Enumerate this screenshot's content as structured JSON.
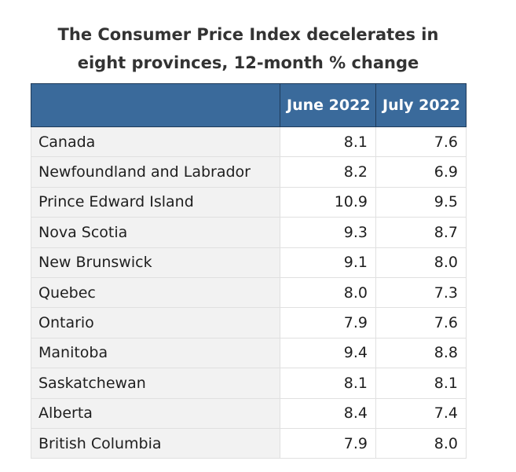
{
  "chart_data": {
    "type": "table",
    "title": "The Consumer Price Index decelerates in eight provinces, 12-month % change",
    "columns": [
      "",
      "June 2022",
      "July 2022"
    ],
    "rows": [
      {
        "label": "Canada",
        "values": [
          "8.1",
          "7.6"
        ]
      },
      {
        "label": "Newfoundland and Labrador",
        "values": [
          "8.2",
          "6.9"
        ]
      },
      {
        "label": "Prince Edward Island",
        "values": [
          "10.9",
          "9.5"
        ]
      },
      {
        "label": "Nova Scotia",
        "values": [
          "9.3",
          "8.7"
        ]
      },
      {
        "label": "New Brunswick",
        "values": [
          "9.1",
          "8.0"
        ]
      },
      {
        "label": "Quebec",
        "values": [
          "8.0",
          "7.3"
        ]
      },
      {
        "label": "Ontario",
        "values": [
          "7.9",
          "7.6"
        ]
      },
      {
        "label": "Manitoba",
        "values": [
          "9.4",
          "8.8"
        ]
      },
      {
        "label": "Saskatchewan",
        "values": [
          "8.1",
          "8.1"
        ]
      },
      {
        "label": "Alberta",
        "values": [
          "8.4",
          "7.4"
        ]
      },
      {
        "label": "British Columbia",
        "values": [
          "7.9",
          "8.0"
        ]
      }
    ]
  },
  "colors": {
    "header_bg": "#3a6a9b",
    "label_bg": "#f2f2f2"
  }
}
